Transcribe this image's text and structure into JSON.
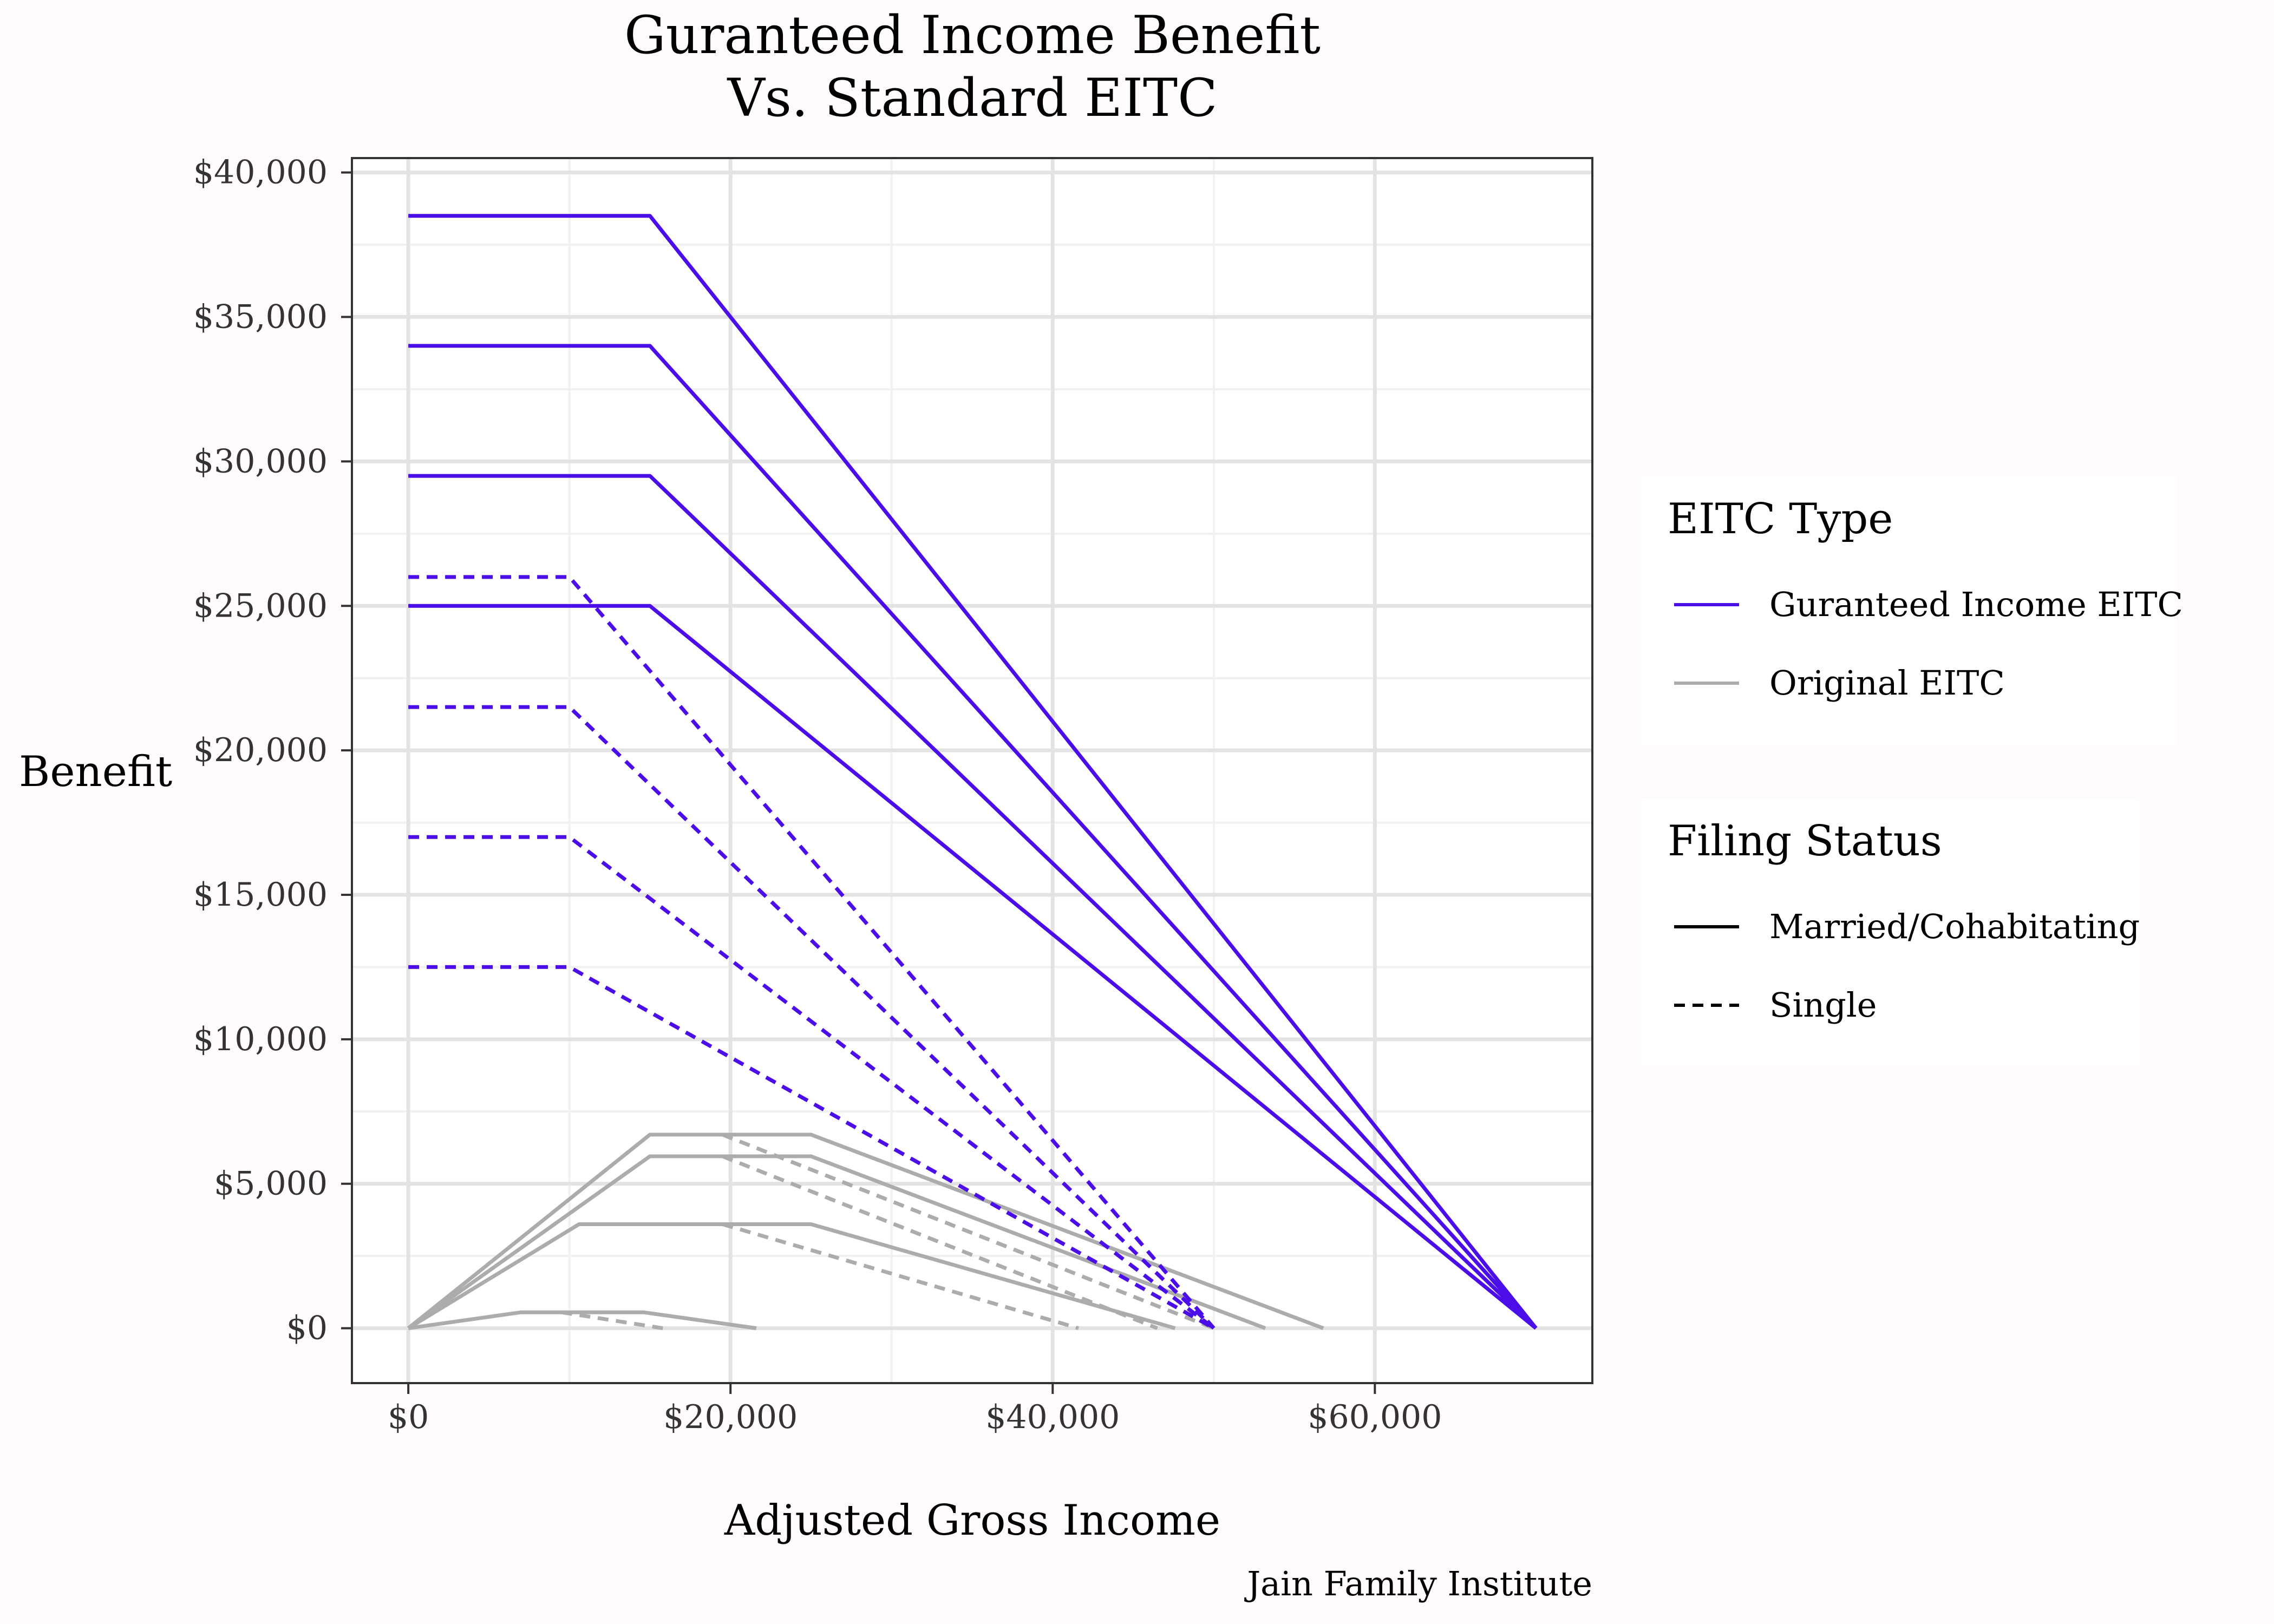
{
  "chart_data": {
    "type": "line",
    "title": [
      "Guranteed Income Benefit",
      "Vs. Standard EITC"
    ],
    "xlabel": "Adjusted Gross Income",
    "ylabel": "Benefit",
    "caption": "Jain Family Institute",
    "xlim": [
      -3500,
      73500
    ],
    "ylim": [
      -1900,
      40500
    ],
    "x_ticks": [
      {
        "value": 0,
        "label": "$0"
      },
      {
        "value": 20000,
        "label": "$20,000"
      },
      {
        "value": 40000,
        "label": "$40,000"
      },
      {
        "value": 60000,
        "label": "$60,000"
      }
    ],
    "y_ticks": [
      {
        "value": 0,
        "label": "$0"
      },
      {
        "value": 5000,
        "label": "$5,000"
      },
      {
        "value": 10000,
        "label": "$10,000"
      },
      {
        "value": 15000,
        "label": "$15,000"
      },
      {
        "value": 20000,
        "label": "$20,000"
      },
      {
        "value": 25000,
        "label": "$25,000"
      },
      {
        "value": 30000,
        "label": "$30,000"
      },
      {
        "value": 35000,
        "label": "$35,000"
      },
      {
        "value": 40000,
        "label": "$40,000"
      }
    ],
    "grid": true,
    "legend_position": "right",
    "legends": [
      {
        "title": "EITC Type",
        "entries": [
          {
            "label": "Guranteed Income EITC",
            "color": "#4b0ee8",
            "dash": "solid"
          },
          {
            "label": "Original EITC",
            "color": "#acacac",
            "dash": "solid"
          }
        ]
      },
      {
        "title": "Filing Status",
        "entries": [
          {
            "label": "Married/Cohabitating",
            "color": "#000000",
            "dash": "solid"
          },
          {
            "label": "Single",
            "color": "#000000",
            "dash": "dashed"
          }
        ]
      }
    ],
    "colors": {
      "guaranteed": "#4b0ee8",
      "original": "#acacac"
    },
    "series": [
      {
        "type": "Guranteed Income EITC",
        "filing": "Married/Cohabitating",
        "x": [
          0,
          15000,
          70000
        ],
        "y": [
          38500,
          38500,
          0
        ]
      },
      {
        "type": "Guranteed Income EITC",
        "filing": "Married/Cohabitating",
        "x": [
          0,
          15000,
          70000
        ],
        "y": [
          34000,
          34000,
          0
        ]
      },
      {
        "type": "Guranteed Income EITC",
        "filing": "Married/Cohabitating",
        "x": [
          0,
          15000,
          70000
        ],
        "y": [
          29500,
          29500,
          0
        ]
      },
      {
        "type": "Guranteed Income EITC",
        "filing": "Married/Cohabitating",
        "x": [
          0,
          15000,
          70000
        ],
        "y": [
          25000,
          25000,
          0
        ]
      },
      {
        "type": "Guranteed Income EITC",
        "filing": "Single",
        "x": [
          0,
          10000,
          50000
        ],
        "y": [
          26000,
          26000,
          0
        ]
      },
      {
        "type": "Guranteed Income EITC",
        "filing": "Single",
        "x": [
          0,
          10000,
          50000
        ],
        "y": [
          21500,
          21500,
          0
        ]
      },
      {
        "type": "Guranteed Income EITC",
        "filing": "Single",
        "x": [
          0,
          10000,
          50000
        ],
        "y": [
          17000,
          17000,
          0
        ]
      },
      {
        "type": "Guranteed Income EITC",
        "filing": "Single",
        "x": [
          0,
          10000,
          50000
        ],
        "y": [
          12500,
          12500,
          0
        ]
      },
      {
        "type": "Original EITC",
        "filing": "Married/Cohabitating",
        "x": [
          0,
          15000,
          25000,
          56800
        ],
        "y": [
          0,
          6700,
          6700,
          0
        ]
      },
      {
        "type": "Original EITC",
        "filing": "Married/Cohabitating",
        "x": [
          0,
          15000,
          25000,
          53200
        ],
        "y": [
          0,
          5950,
          5950,
          0
        ]
      },
      {
        "type": "Original EITC",
        "filing": "Married/Cohabitating",
        "x": [
          0,
          10600,
          25000,
          47600
        ],
        "y": [
          0,
          3600,
          3600,
          0
        ]
      },
      {
        "type": "Original EITC",
        "filing": "Married/Cohabitating",
        "x": [
          0,
          7000,
          14600,
          21600
        ],
        "y": [
          0,
          550,
          550,
          0
        ]
      },
      {
        "type": "Original EITC",
        "filing": "Single",
        "x": [
          19500,
          50000
        ],
        "y": [
          6700,
          0
        ]
      },
      {
        "type": "Original EITC",
        "filing": "Single",
        "x": [
          19500,
          46500
        ],
        "y": [
          5950,
          0
        ]
      },
      {
        "type": "Original EITC",
        "filing": "Single",
        "x": [
          19500,
          41600
        ],
        "y": [
          3600,
          0
        ]
      },
      {
        "type": "Original EITC",
        "filing": "Single",
        "x": [
          9500,
          15800
        ],
        "y": [
          550,
          0
        ]
      }
    ]
  }
}
